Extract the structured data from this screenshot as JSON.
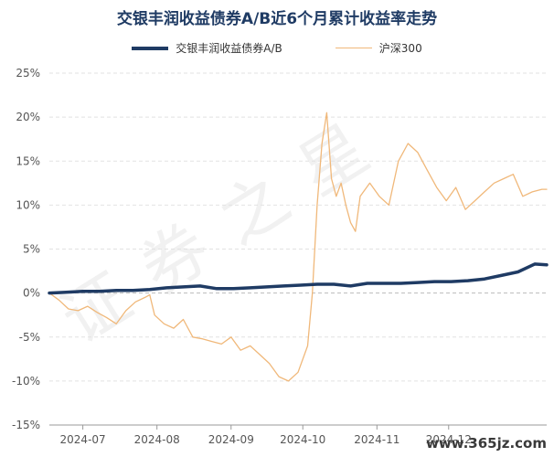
{
  "watermark": "证券之星",
  "site_mark": "www.365jz.com",
  "chart_data": {
    "type": "line",
    "title": "交银丰润收益债券A/B近6个月累计收益率走势",
    "legend_position": "top",
    "grid": true,
    "x_ticks": [
      "2024-07",
      "2024-08",
      "2024-09",
      "2024-10",
      "2024-11",
      "2024-12"
    ],
    "y_ticks": [
      "25%",
      "20%",
      "15%",
      "10%",
      "5%",
      "0%",
      "-5%",
      "-10%",
      "-15%"
    ],
    "ylim": [
      -15,
      25
    ],
    "x_unit": "days since first point",
    "series": [
      {
        "name": "交银丰润收益债券A/B",
        "color": "#1f3b64",
        "points": [
          [
            0,
            0
          ],
          [
            7,
            0.1
          ],
          [
            14,
            0.2
          ],
          [
            21,
            0.2
          ],
          [
            28,
            0.3
          ],
          [
            35,
            0.3
          ],
          [
            42,
            0.4
          ],
          [
            49,
            0.6
          ],
          [
            56,
            0.7
          ],
          [
            63,
            0.8
          ],
          [
            70,
            0.5
          ],
          [
            77,
            0.5
          ],
          [
            84,
            0.6
          ],
          [
            91,
            0.7
          ],
          [
            98,
            0.8
          ],
          [
            105,
            0.9
          ],
          [
            112,
            1.0
          ],
          [
            119,
            1.0
          ],
          [
            126,
            0.8
          ],
          [
            133,
            1.1
          ],
          [
            140,
            1.1
          ],
          [
            147,
            1.1
          ],
          [
            154,
            1.2
          ],
          [
            161,
            1.3
          ],
          [
            168,
            1.3
          ],
          [
            175,
            1.4
          ],
          [
            182,
            1.6
          ],
          [
            189,
            2.0
          ],
          [
            196,
            2.4
          ],
          [
            203,
            3.3
          ],
          [
            208,
            3.2
          ]
        ]
      },
      {
        "name": "沪深300",
        "color": "#f0b87a",
        "points": [
          [
            0,
            0
          ],
          [
            4,
            -0.8
          ],
          [
            8,
            -1.8
          ],
          [
            12,
            -2.0
          ],
          [
            16,
            -1.5
          ],
          [
            20,
            -2.2
          ],
          [
            24,
            -2.8
          ],
          [
            28,
            -3.5
          ],
          [
            32,
            -2.0
          ],
          [
            36,
            -1.0
          ],
          [
            40,
            -0.5
          ],
          [
            42,
            -0.2
          ],
          [
            44,
            -2.5
          ],
          [
            48,
            -3.5
          ],
          [
            52,
            -4.0
          ],
          [
            56,
            -3.0
          ],
          [
            60,
            -5.0
          ],
          [
            64,
            -5.2
          ],
          [
            68,
            -5.5
          ],
          [
            72,
            -5.8
          ],
          [
            76,
            -5.0
          ],
          [
            80,
            -6.5
          ],
          [
            84,
            -6.0
          ],
          [
            88,
            -7.0
          ],
          [
            92,
            -8.0
          ],
          [
            96,
            -9.5
          ],
          [
            100,
            -10.0
          ],
          [
            104,
            -9.0
          ],
          [
            108,
            -6.0
          ],
          [
            110,
            0
          ],
          [
            112,
            10
          ],
          [
            114,
            17
          ],
          [
            116,
            20.5
          ],
          [
            118,
            13
          ],
          [
            120,
            11
          ],
          [
            122,
            12.5
          ],
          [
            124,
            10
          ],
          [
            126,
            8
          ],
          [
            128,
            7
          ],
          [
            130,
            11
          ],
          [
            134,
            12.5
          ],
          [
            138,
            11
          ],
          [
            142,
            10
          ],
          [
            146,
            15
          ],
          [
            150,
            17
          ],
          [
            154,
            16
          ],
          [
            158,
            14
          ],
          [
            162,
            12
          ],
          [
            166,
            10.5
          ],
          [
            170,
            12
          ],
          [
            174,
            9.5
          ],
          [
            178,
            10.5
          ],
          [
            182,
            11.5
          ],
          [
            186,
            12.5
          ],
          [
            190,
            13
          ],
          [
            194,
            13.5
          ],
          [
            198,
            11
          ],
          [
            202,
            11.5
          ],
          [
            206,
            11.8
          ],
          [
            208,
            11.8
          ]
        ]
      }
    ]
  }
}
